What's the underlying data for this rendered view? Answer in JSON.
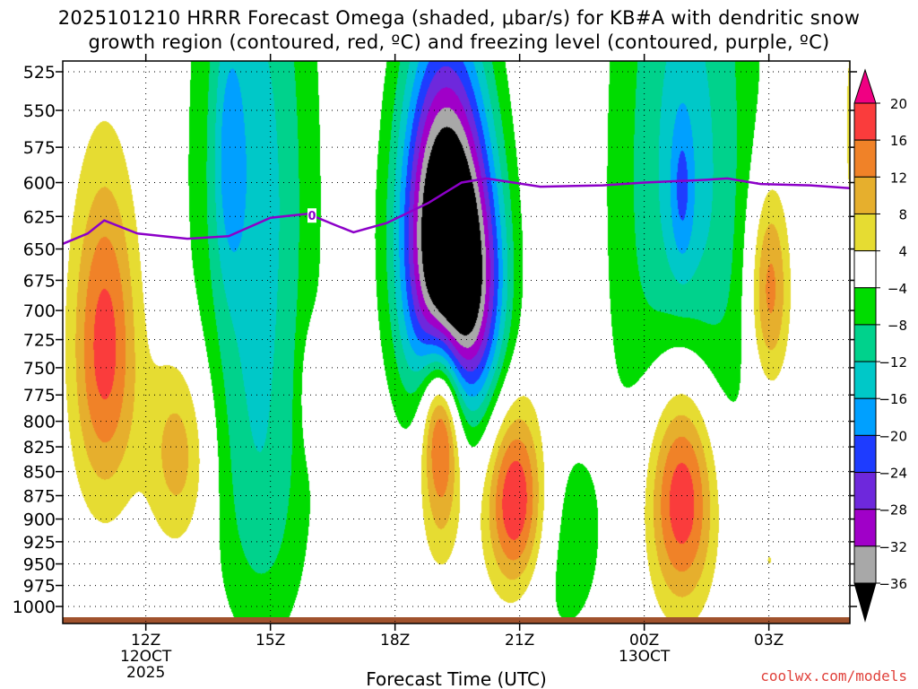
{
  "header": {
    "title_line1": "2025101210 HRRR Forecast Omega (shaded, μbar/s) for KB#A with dendritic snow",
    "title_line2": "growth region (contoured, red, ºC) and freezing level (contoured, purple, ºC)"
  },
  "footer": {
    "credit": "coolwx.com/models"
  },
  "chart_data": {
    "type": "heatmap",
    "title": "2025101210 HRRR Forecast Omega (shaded, μbar/s) for KB#A with dendritic snow growth region (contoured, red, ºC) and freezing level (contoured, purple, ºC)",
    "xlabel": "Forecast Time (UTC)",
    "ylabel": "",
    "x_range_hours": [
      10.0,
      28.95
    ],
    "y_range_mb": [
      1000,
      525
    ],
    "y_scale": "log",
    "grid": true,
    "x_ticks": [
      {
        "t": 12,
        "lines": [
          "12Z",
          "12OCT",
          "2025"
        ]
      },
      {
        "t": 15,
        "lines": [
          "15Z"
        ]
      },
      {
        "t": 18,
        "lines": [
          "18Z"
        ]
      },
      {
        "t": 21,
        "lines": [
          "21Z"
        ]
      },
      {
        "t": 24,
        "lines": [
          "00Z",
          "13OCT"
        ]
      },
      {
        "t": 27,
        "lines": [
          "03Z"
        ]
      }
    ],
    "y_ticks": [
      525,
      550,
      575,
      600,
      625,
      650,
      675,
      700,
      725,
      750,
      775,
      800,
      825,
      850,
      875,
      900,
      925,
      950,
      975,
      1000
    ],
    "colorbar": {
      "labels": [
        "20",
        "16",
        "12",
        "8",
        "4",
        "−4",
        "−8",
        "−12",
        "−16",
        "−20",
        "−24",
        "−28",
        "−32",
        "−36"
      ],
      "bins": [
        {
          "color": "#000000",
          "range": [
            -99,
            -36
          ]
        },
        {
          "color": "#a8a8a8",
          "range": [
            -36,
            -32
          ]
        },
        {
          "color": "#a000c8",
          "range": [
            -32,
            -28
          ]
        },
        {
          "color": "#6e28dc",
          "range": [
            -28,
            -24
          ]
        },
        {
          "color": "#1e3cff",
          "range": [
            -24,
            -20
          ]
        },
        {
          "color": "#00a0ff",
          "range": [
            -20,
            -16
          ]
        },
        {
          "color": "#00c8c8",
          "range": [
            -16,
            -12
          ]
        },
        {
          "color": "#00d28c",
          "range": [
            -12,
            -8
          ]
        },
        {
          "color": "#00dc00",
          "range": [
            -8,
            -4
          ]
        },
        {
          "color": "#ffffff",
          "range": [
            -4,
            4
          ]
        },
        {
          "color": "#e6dc32",
          "range": [
            4,
            8
          ]
        },
        {
          "color": "#e6af2d",
          "range": [
            8,
            12
          ]
        },
        {
          "color": "#f08228",
          "range": [
            12,
            16
          ]
        },
        {
          "color": "#fa3c3c",
          "range": [
            16,
            20
          ]
        },
        {
          "color": "#f00082",
          "range": [
            20,
            99
          ]
        }
      ]
    },
    "features": [
      {
        "kind": "omega",
        "t": 11.0,
        "p": 730,
        "peak": 18,
        "st": 0.55,
        "sp": 100
      },
      {
        "kind": "omega",
        "t": 12.8,
        "p": 830,
        "peak": 11,
        "st": 0.55,
        "sp": 70
      },
      {
        "kind": "omega",
        "t": 16.0,
        "p": 775,
        "peak": 6,
        "st": 0.2,
        "sp": 40
      },
      {
        "kind": "omega",
        "t": 19.1,
        "p": 790,
        "peak": 24,
        "st": 0.35,
        "sp": 55
      },
      {
        "kind": "omega",
        "t": 19.1,
        "p": 880,
        "peak": 8,
        "st": 0.35,
        "sp": 60
      },
      {
        "kind": "omega",
        "t": 20.9,
        "p": 880,
        "peak": 22,
        "st": 0.5,
        "sp": 70
      },
      {
        "kind": "omega",
        "t": 24.9,
        "p": 870,
        "peak": 24,
        "st": 0.6,
        "sp": 90
      },
      {
        "kind": "omega",
        "t": 27.0,
        "p": 680,
        "peak": 16,
        "st": 0.35,
        "sp": 60
      },
      {
        "kind": "omega",
        "t": 27.0,
        "p": 945,
        "peak": 5,
        "st": 0.12,
        "sp": 12
      },
      {
        "kind": "omega",
        "t": 29.0,
        "p": 560,
        "peak": 6,
        "st": 0.15,
        "sp": 60
      },
      {
        "kind": "omega",
        "t": 19.2,
        "p": 640,
        "peak": -48,
        "st": 0.75,
        "sp": 100
      },
      {
        "kind": "omega",
        "t": 20.0,
        "p": 690,
        "peak": -14,
        "st": 0.55,
        "sp": 70
      },
      {
        "kind": "omega",
        "t": 14.6,
        "p": 600,
        "peak": -14,
        "st": 1.0,
        "sp": 180
      },
      {
        "kind": "omega",
        "t": 14.0,
        "p": 580,
        "peak": -8,
        "st": 0.25,
        "sp": 60
      },
      {
        "kind": "omega",
        "t": 25.0,
        "p": 600,
        "peak": -14,
        "st": 1.2,
        "sp": 200
      },
      {
        "kind": "omega",
        "t": 24.9,
        "p": 605,
        "peak": -8,
        "st": 0.2,
        "sp": 40
      },
      {
        "kind": "omega",
        "t": 14.8,
        "p": 900,
        "peak": -7,
        "st": 0.8,
        "sp": 120
      },
      {
        "kind": "omega",
        "t": 22.0,
        "p": 930,
        "peak": -6,
        "st": 0.8,
        "sp": 100
      }
    ],
    "freezing_level": {
      "label": "0",
      "points": [
        [
          10.0,
          646
        ],
        [
          10.6,
          638
        ],
        [
          11.0,
          628
        ],
        [
          11.8,
          638
        ],
        [
          13.0,
          642
        ],
        [
          14.0,
          640
        ],
        [
          15.0,
          626
        ],
        [
          15.9,
          623
        ],
        [
          16.6,
          632
        ],
        [
          17.0,
          637
        ],
        [
          17.8,
          630
        ],
        [
          18.8,
          615
        ],
        [
          19.6,
          600
        ],
        [
          20.2,
          597
        ],
        [
          21.5,
          603
        ],
        [
          23.0,
          602
        ],
        [
          24.0,
          600
        ],
        [
          25.5,
          598
        ],
        [
          26.0,
          597
        ],
        [
          26.8,
          601
        ],
        [
          28.0,
          602
        ],
        [
          28.95,
          604
        ]
      ],
      "label_at_t": 16.0,
      "color": "#8c00c8"
    },
    "terrain_color": "#a0522d"
  }
}
